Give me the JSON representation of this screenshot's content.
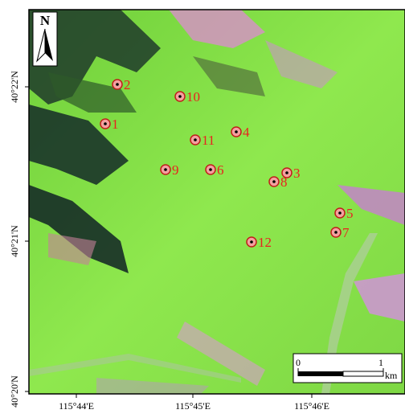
{
  "north": "N",
  "y_labels": [
    "40°22'N",
    "40°21'N",
    "40°20'N"
  ],
  "x_labels": [
    "115°44'E",
    "115°45'E",
    "115°46'E"
  ],
  "points": [
    "1",
    "2",
    "3",
    "4",
    "5",
    "6",
    "7",
    "8",
    "9",
    "10",
    "11",
    "12"
  ],
  "scale_bar": {
    "start": "0",
    "end": "1",
    "unit": "km"
  }
}
